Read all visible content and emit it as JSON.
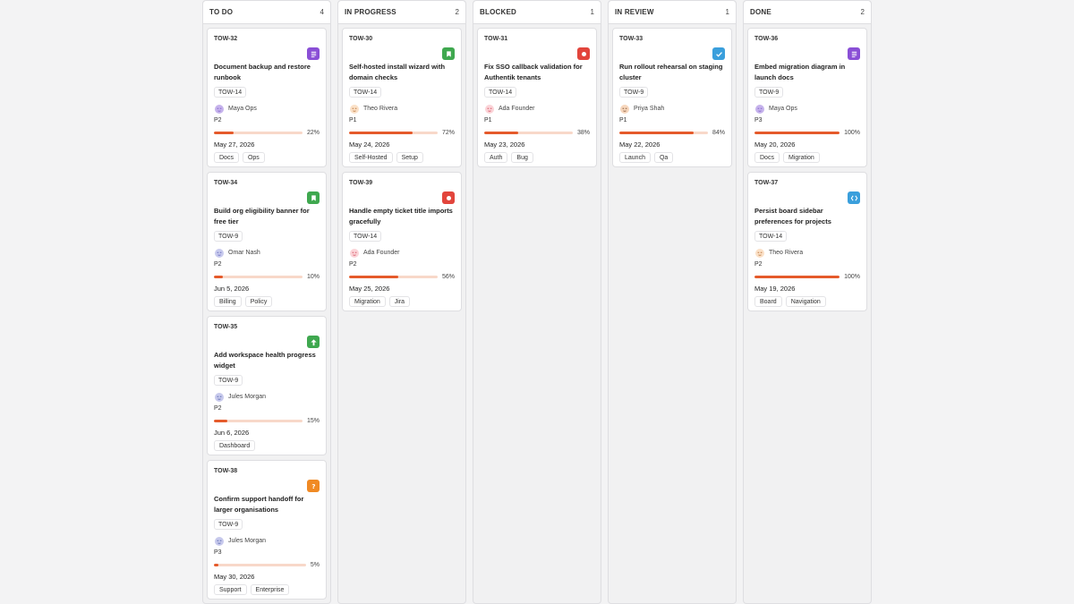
{
  "colors": {
    "docs": "#8a4fd6",
    "story": "#3fa84f",
    "bug": "#e2453c",
    "task": "#3a9fdc",
    "question": "#f08a24",
    "progress": "#e55a2b"
  },
  "columns": [
    {
      "title": "TO DO",
      "count": "4",
      "cards": [
        {
          "id": "TOW-32",
          "type": "docs",
          "icon": "document-lines-icon",
          "title": "Document backup and restore runbook",
          "parent": "TOW-14",
          "assignee": "Maya Ops",
          "avatar": "maya",
          "priority": "P2",
          "progress": 22,
          "progress_label": "22%",
          "due": "May 27, 2026",
          "labels": [
            "Docs",
            "Ops"
          ]
        },
        {
          "id": "TOW-34",
          "type": "story",
          "icon": "bookmark-icon",
          "title": "Build org eligibility banner for free tier",
          "parent": "TOW-9",
          "assignee": "Omar Nash",
          "avatar": "omar",
          "priority": "P2",
          "progress": 10,
          "progress_label": "10%",
          "due": "Jun 5, 2026",
          "labels": [
            "Billing",
            "Policy"
          ]
        },
        {
          "id": "TOW-35",
          "type": "story",
          "icon": "arrow-up-icon",
          "title": "Add workspace health progress widget",
          "parent": "TOW-9",
          "assignee": "Jules Morgan",
          "avatar": "jules",
          "priority": "P2",
          "progress": 15,
          "progress_label": "15%",
          "due": "Jun 6, 2026",
          "labels": [
            "Dashboard"
          ]
        },
        {
          "id": "TOW-38",
          "type": "question",
          "icon": "question-icon",
          "title": "Confirm support handoff for larger organisations",
          "parent": "TOW-9",
          "assignee": "Jules Morgan",
          "avatar": "jules",
          "priority": "P3",
          "progress": 5,
          "progress_label": "5%",
          "due": "May 30, 2026",
          "labels": [
            "Support",
            "Enterprise"
          ]
        }
      ]
    },
    {
      "title": "IN PROGRESS",
      "count": "2",
      "cards": [
        {
          "id": "TOW-30",
          "type": "story",
          "icon": "bookmark-icon",
          "title": "Self-hosted install wizard with domain checks",
          "parent": "TOW-14",
          "assignee": "Theo Rivera",
          "avatar": "theo",
          "priority": "P1",
          "progress": 72,
          "progress_label": "72%",
          "due": "May 24, 2026",
          "labels": [
            "Self-Hosted",
            "Setup"
          ]
        },
        {
          "id": "TOW-39",
          "type": "bug",
          "icon": "bug-dot-icon",
          "title": "Handle empty ticket title imports gracefully",
          "parent": "TOW-14",
          "assignee": "Ada Founder",
          "avatar": "ada",
          "priority": "P2",
          "progress": 56,
          "progress_label": "56%",
          "due": "May 25, 2026",
          "labels": [
            "Migration",
            "Jira"
          ]
        }
      ]
    },
    {
      "title": "BLOCKED",
      "count": "1",
      "cards": [
        {
          "id": "TOW-31",
          "type": "bug",
          "icon": "bug-dot-icon",
          "title": "Fix SSO callback validation for Authentik tenants",
          "parent": "TOW-14",
          "assignee": "Ada Founder",
          "avatar": "ada",
          "priority": "P1",
          "progress": 38,
          "progress_label": "38%",
          "due": "May 23, 2026",
          "labels": [
            "Auth",
            "Bug"
          ]
        }
      ]
    },
    {
      "title": "IN REVIEW",
      "count": "1",
      "cards": [
        {
          "id": "TOW-33",
          "type": "task",
          "icon": "checkmark-icon",
          "title": "Run rollout rehearsal on staging cluster",
          "parent": "TOW-9",
          "assignee": "Priya Shah",
          "avatar": "priya",
          "priority": "P1",
          "progress": 84,
          "progress_label": "84%",
          "due": "May 22, 2026",
          "labels": [
            "Launch",
            "Qa"
          ]
        }
      ]
    },
    {
      "title": "DONE",
      "count": "2",
      "cards": [
        {
          "id": "TOW-36",
          "type": "docs",
          "icon": "document-lines-icon",
          "title": "Embed migration diagram in launch docs",
          "parent": "TOW-9",
          "assignee": "Maya Ops",
          "avatar": "maya",
          "priority": "P3",
          "progress": 100,
          "progress_label": "100%",
          "due": "May 20, 2026",
          "labels": [
            "Docs",
            "Migration"
          ]
        },
        {
          "id": "TOW-37",
          "type": "task",
          "icon": "code-brackets-icon",
          "title": "Persist board sidebar preferences for projects",
          "parent": "TOW-14",
          "assignee": "Theo Rivera",
          "avatar": "theo",
          "priority": "P2",
          "progress": 100,
          "progress_label": "100%",
          "due": "May 19, 2026",
          "labels": [
            "Board",
            "Navigation"
          ]
        }
      ]
    }
  ]
}
